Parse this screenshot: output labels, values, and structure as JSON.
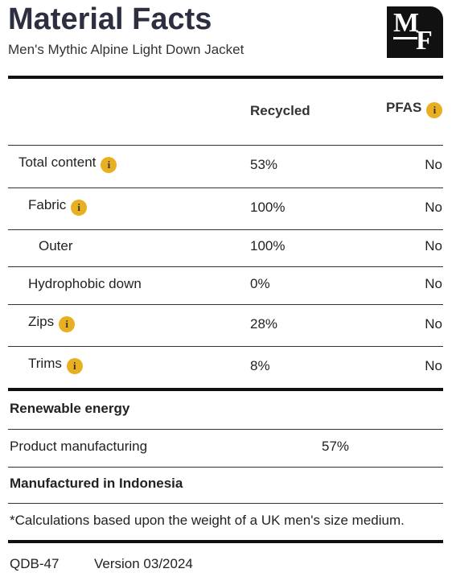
{
  "header": {
    "title": "Material Facts",
    "subtitle": "Men's Mythic Alpine Light Down Jacket",
    "logo": [
      "M",
      "F"
    ]
  },
  "table": {
    "columns": [
      "Recycled",
      "PFAS"
    ],
    "rows": [
      {
        "label": "Total content",
        "recycled": "53%",
        "pfas": "No"
      },
      {
        "label": "Fabric",
        "recycled": "100%",
        "pfas": "No"
      },
      {
        "label": "Outer",
        "recycled": "100%",
        "pfas": "No"
      },
      {
        "label": "Hydrophobic down",
        "recycled": "0%",
        "pfas": "No"
      },
      {
        "label": "Zips",
        "recycled": "28%",
        "pfas": "No"
      },
      {
        "label": "Trims",
        "recycled": "8%",
        "pfas": "No"
      }
    ]
  },
  "energy": {
    "title": "Renewable energy",
    "rows": [
      {
        "label": "Product manufacturing",
        "value": "57%"
      }
    ]
  },
  "origin": "Manufactured in Indonesia",
  "footnote": "*Calculations based upon the weight of a UK men's size medium.",
  "footer": {
    "code": "QDB-47",
    "version": "Version 03/2024"
  }
}
